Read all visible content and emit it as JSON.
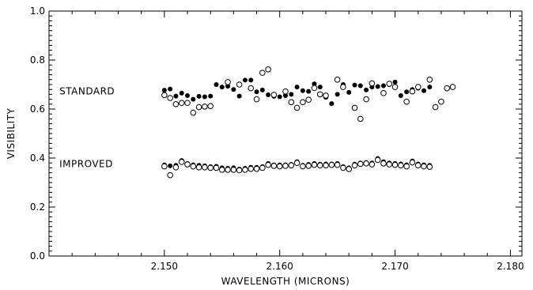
{
  "chart_data": {
    "type": "scatter",
    "xlabel": "WAVELENGTH (MICRONS)",
    "ylabel": "VISIBILITY",
    "xlim": [
      2.14,
      2.181
    ],
    "ylim": [
      0.0,
      1.0
    ],
    "xticks": [
      2.15,
      2.16,
      2.17,
      2.18
    ],
    "xtick_labels": [
      "2.150",
      "2.160",
      "2.170",
      "2.180"
    ],
    "yticks": [
      0.0,
      0.2,
      0.4,
      0.6,
      0.8,
      1.0
    ],
    "ytick_labels": [
      "0.0",
      "0.2",
      "0.4",
      "0.6",
      "0.8",
      "1.0"
    ],
    "grid": false,
    "annotations": [
      {
        "text": "STANDARD",
        "x": 2.1409,
        "y": 0.672
      },
      {
        "text": "IMPROVED",
        "x": 2.1409,
        "y": 0.376
      }
    ],
    "x": [
      2.15,
      2.1505,
      2.151,
      2.1515,
      2.152,
      2.1525,
      2.153,
      2.1535,
      2.154,
      2.1545,
      2.155,
      2.1555,
      2.156,
      2.1565,
      2.157,
      2.1575,
      2.158,
      2.1585,
      2.159,
      2.1595,
      2.16,
      2.1605,
      2.161,
      2.1615,
      2.162,
      2.1625,
      2.163,
      2.1635,
      2.164,
      2.1645,
      2.165,
      2.1655,
      2.166,
      2.1665,
      2.167,
      2.1675,
      2.168,
      2.1685,
      2.169,
      2.1695,
      2.17,
      2.1705,
      2.171,
      2.1715,
      2.172,
      2.1725,
      2.173,
      2.1735,
      2.174,
      2.1745,
      2.175,
      2.1755,
      2.176,
      2.1765,
      2.177,
      2.1775,
      2.178
    ],
    "series": [
      {
        "values": [
          0.677,
          0.682,
          0.653,
          0.665,
          0.655,
          0.64,
          0.652,
          0.65,
          0.653,
          0.7,
          0.69,
          0.693,
          0.68,
          0.653,
          0.718,
          0.718,
          0.67,
          0.678,
          0.658,
          0.652,
          0.65,
          0.655,
          0.66,
          0.69,
          0.675,
          0.672,
          0.703,
          0.69,
          0.648,
          0.622,
          0.66,
          0.7,
          0.668,
          0.698,
          0.695,
          0.678,
          0.69,
          0.692,
          0.695,
          0.7,
          0.71,
          0.655,
          0.67,
          0.68,
          0.685,
          0.675,
          0.69
        ],
        "x_index": [
          0,
          1,
          2,
          3,
          4,
          5,
          6,
          7,
          8,
          9,
          10,
          11,
          12,
          13,
          14,
          15,
          16,
          17,
          18,
          19,
          20,
          21,
          22,
          23,
          24,
          25,
          26,
          27,
          28,
          29,
          30,
          31,
          32,
          33,
          34,
          35,
          36,
          37,
          38,
          39,
          40,
          41,
          42,
          43,
          44,
          45,
          46
        ],
        "marker": "filled"
      },
      {
        "values": [
          0.657,
          0.645,
          0.62,
          0.625,
          0.625,
          0.585,
          0.608,
          0.61,
          0.612,
          0.71,
          0.7,
          0.685,
          0.64,
          0.748,
          0.762,
          0.658,
          0.672,
          0.628,
          0.605,
          0.628,
          0.638,
          0.686,
          0.66,
          0.655,
          0.72,
          0.69,
          0.605,
          0.56,
          0.64,
          0.705,
          0.665,
          0.703,
          0.69,
          0.63,
          0.672,
          0.69,
          0.72,
          0.608,
          0.63,
          0.685,
          0.69
        ],
        "x_index": [
          0,
          1,
          2,
          3,
          4,
          5,
          6,
          7,
          8,
          11,
          13,
          15,
          16,
          17,
          18,
          19,
          21,
          22,
          23,
          24,
          25,
          26,
          27,
          28,
          30,
          31,
          33,
          34,
          35,
          36,
          38,
          39,
          40,
          42,
          43,
          44,
          46,
          47,
          48,
          49,
          50
        ],
        "marker": "open"
      },
      {
        "values": [
          0.372,
          0.368,
          0.37,
          0.39,
          0.378,
          0.372,
          0.37,
          0.368,
          0.365,
          0.366,
          0.36,
          0.358,
          0.36,
          0.355,
          0.358,
          0.362,
          0.362,
          0.365,
          0.378,
          0.372,
          0.372,
          0.372,
          0.374,
          0.385,
          0.37,
          0.374,
          0.378,
          0.375,
          0.376,
          0.376,
          0.378,
          0.365,
          0.36,
          0.375,
          0.38,
          0.382,
          0.38,
          0.398,
          0.385,
          0.38,
          0.378,
          0.376,
          0.372,
          0.388,
          0.376,
          0.372,
          0.37
        ],
        "x_index": [
          0,
          1,
          2,
          3,
          4,
          5,
          6,
          7,
          8,
          9,
          10,
          11,
          12,
          13,
          14,
          15,
          16,
          17,
          18,
          19,
          20,
          21,
          22,
          23,
          24,
          25,
          26,
          27,
          28,
          29,
          30,
          31,
          32,
          33,
          34,
          35,
          36,
          37,
          38,
          39,
          40,
          41,
          42,
          43,
          44,
          45,
          46
        ],
        "marker": "filled"
      },
      {
        "values": [
          0.366,
          0.33,
          0.362,
          0.384,
          0.374,
          0.366,
          0.362,
          0.362,
          0.36,
          0.36,
          0.352,
          0.352,
          0.352,
          0.35,
          0.352,
          0.356,
          0.356,
          0.36,
          0.372,
          0.368,
          0.366,
          0.368,
          0.37,
          0.38,
          0.366,
          0.368,
          0.372,
          0.37,
          0.37,
          0.372,
          0.372,
          0.36,
          0.355,
          0.37,
          0.376,
          0.378,
          0.374,
          0.392,
          0.378,
          0.374,
          0.372,
          0.37,
          0.366,
          0.382,
          0.37,
          0.366,
          0.364
        ],
        "x_index": [
          0,
          1,
          2,
          3,
          4,
          5,
          6,
          7,
          8,
          9,
          10,
          11,
          12,
          13,
          14,
          15,
          16,
          17,
          18,
          19,
          20,
          21,
          22,
          23,
          24,
          25,
          26,
          27,
          28,
          29,
          30,
          31,
          32,
          33,
          34,
          35,
          36,
          37,
          38,
          39,
          40,
          41,
          42,
          43,
          44,
          45,
          46
        ],
        "marker": "open"
      }
    ]
  }
}
